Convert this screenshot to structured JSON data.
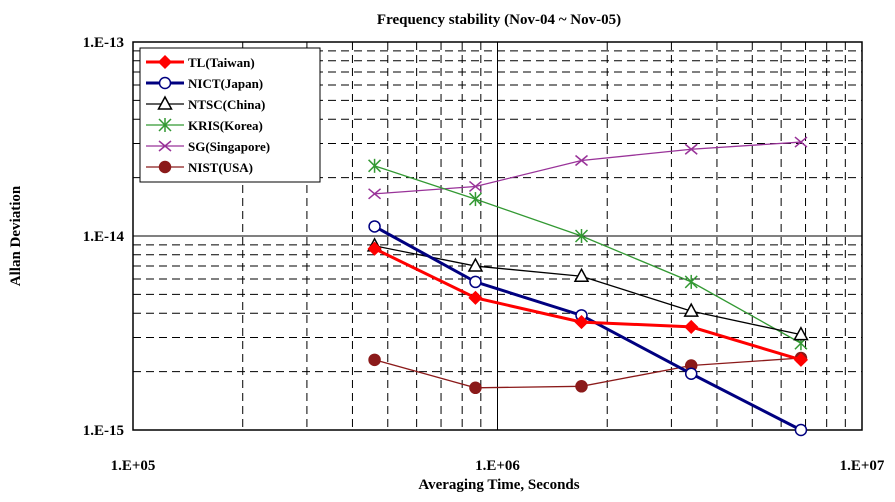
{
  "chart_data": {
    "type": "line",
    "title": "Frequency stability (Nov-04 ~ Nov-05)",
    "xlabel": "Averaging Time, Seconds",
    "ylabel": "Allan Deviation",
    "xscale": "log",
    "yscale": "log",
    "xlim": [
      100000,
      10000000
    ],
    "ylim": [
      1e-15,
      1e-13
    ],
    "x_ticks": [
      {
        "value": 100000,
        "label": "1.E+05"
      },
      {
        "value": 1000000,
        "label": "1.E+06"
      },
      {
        "value": 10000000,
        "label": "1.E+07"
      }
    ],
    "y_ticks": [
      {
        "value": 1e-13,
        "label": "1.E-13"
      },
      {
        "value": 1e-14,
        "label": "1.E-14"
      },
      {
        "value": 1e-15,
        "label": "1.E-15"
      }
    ],
    "grid": true,
    "legend_position": "top-left",
    "series": [
      {
        "name": "TL(Taiwan)",
        "color": "#ff0000",
        "marker": "diamond",
        "marker_fill": "#ff0000",
        "x": [
          460000,
          870000,
          1700000,
          3400000,
          6800000
        ],
        "y": [
          8.6e-15,
          4.8e-15,
          3.6e-15,
          3.4e-15,
          2.3e-15
        ]
      },
      {
        "name": "NICT(Japan)",
        "color": "#000080",
        "marker": "circle",
        "marker_fill": "#ffffff",
        "x": [
          460000,
          870000,
          1700000,
          3400000,
          6800000
        ],
        "y": [
          1.12e-14,
          5.8e-15,
          3.9e-15,
          1.95e-15,
          1e-15
        ]
      },
      {
        "name": "NTSC(China)",
        "color": "#000000",
        "marker": "triangle",
        "marker_fill": "#ffffff",
        "x": [
          460000,
          870000,
          1700000,
          3400000,
          6800000
        ],
        "y": [
          8.9e-15,
          7e-15,
          6.2e-15,
          4.1e-15,
          3.1e-15
        ]
      },
      {
        "name": "KRIS(Korea)",
        "color": "#339933",
        "marker": "star",
        "marker_fill": "none",
        "x": [
          460000,
          870000,
          1700000,
          3400000,
          6800000
        ],
        "y": [
          2.3e-14,
          1.55e-14,
          1e-14,
          5.8e-15,
          2.8e-15
        ]
      },
      {
        "name": "SG(Singapore)",
        "color": "#993399",
        "marker": "x",
        "marker_fill": "none",
        "x": [
          460000,
          870000,
          1700000,
          3400000,
          6800000
        ],
        "y": [
          1.65e-14,
          1.8e-14,
          2.45e-14,
          2.8e-14,
          3.05e-14
        ]
      },
      {
        "name": "NIST(USA)",
        "color": "#8b1a1a",
        "marker": "circle",
        "marker_fill": "#8b1a1a",
        "x": [
          460000,
          870000,
          1700000,
          3400000,
          6800000
        ],
        "y": [
          2.3e-15,
          1.65e-15,
          1.68e-15,
          2.15e-15,
          2.35e-15
        ]
      }
    ]
  }
}
